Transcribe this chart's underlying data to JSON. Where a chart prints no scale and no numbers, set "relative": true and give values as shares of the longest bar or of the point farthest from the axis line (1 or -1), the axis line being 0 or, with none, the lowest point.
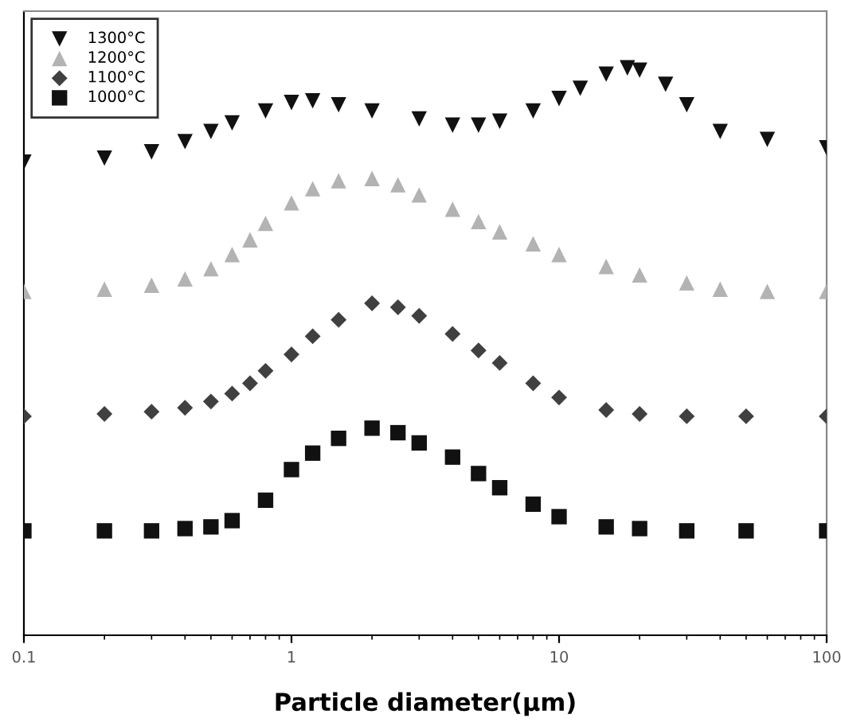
{
  "chart_data": {
    "type": "scatter",
    "relative": true,
    "xlabel": "Particle diameter(µm)",
    "log": "x",
    "xlim": [
      0.1,
      100
    ],
    "xticks": [
      0.1,
      1,
      10,
      100
    ],
    "legend": "top left",
    "grid": false,
    "series": [
      {
        "name": "1300°C",
        "color": "#111111",
        "marker": "triangle_down",
        "x": [
          0.1,
          0.2,
          0.3,
          0.4,
          0.5,
          0.6,
          0.8,
          1.0,
          1.2,
          1.5,
          2,
          3,
          4,
          5,
          6,
          8,
          10,
          12,
          15,
          18,
          20,
          25,
          30,
          40,
          60,
          100
        ],
        "values": [
          0.834,
          0.841,
          0.852,
          0.87,
          0.888,
          0.903,
          0.924,
          0.939,
          0.942,
          0.935,
          0.924,
          0.91,
          0.899,
          0.899,
          0.906,
          0.924,
          0.946,
          0.964,
          0.989,
          1,
          0.996,
          0.971,
          0.935,
          0.888,
          0.874,
          0.859
        ]
      },
      {
        "name": "1200°C",
        "color": "#b3b3b3",
        "marker": "triangle",
        "x": [
          0.1,
          0.2,
          0.3,
          0.4,
          0.5,
          0.6,
          0.7,
          0.8,
          1.0,
          1.2,
          1.5,
          2,
          2.5,
          3,
          4,
          5,
          6,
          8,
          10,
          15,
          20,
          30,
          40,
          60,
          100
        ],
        "values": [
          0.606,
          0.61,
          0.617,
          0.628,
          0.646,
          0.671,
          0.697,
          0.726,
          0.762,
          0.787,
          0.801,
          0.805,
          0.794,
          0.776,
          0.751,
          0.729,
          0.711,
          0.69,
          0.671,
          0.65,
          0.635,
          0.621,
          0.61,
          0.606,
          0.606
        ]
      },
      {
        "name": "1100°C",
        "color": "#404040",
        "marker": "diamond",
        "x": [
          0.1,
          0.2,
          0.3,
          0.4,
          0.5,
          0.6,
          0.7,
          0.8,
          1.0,
          1.2,
          1.5,
          2,
          2.5,
          3,
          4,
          5,
          6,
          8,
          10,
          15,
          20,
          30,
          50,
          100
        ],
        "values": [
          0.386,
          0.39,
          0.394,
          0.401,
          0.412,
          0.426,
          0.444,
          0.466,
          0.495,
          0.527,
          0.556,
          0.585,
          0.578,
          0.563,
          0.531,
          0.502,
          0.48,
          0.444,
          0.419,
          0.397,
          0.39,
          0.386,
          0.386,
          0.386
        ]
      },
      {
        "name": "1000°C",
        "color": "#111111",
        "marker": "square",
        "x": [
          0.1,
          0.2,
          0.3,
          0.4,
          0.5,
          0.6,
          0.8,
          1.0,
          1.2,
          1.5,
          2,
          2.5,
          3,
          4,
          5,
          6,
          8,
          10,
          15,
          20,
          30,
          50,
          100
        ],
        "values": [
          0.184,
          0.184,
          0.184,
          0.188,
          0.191,
          0.202,
          0.238,
          0.292,
          0.321,
          0.347,
          0.365,
          0.357,
          0.339,
          0.314,
          0.285,
          0.26,
          0.231,
          0.209,
          0.191,
          0.188,
          0.184,
          0.184,
          0.184
        ]
      }
    ]
  }
}
